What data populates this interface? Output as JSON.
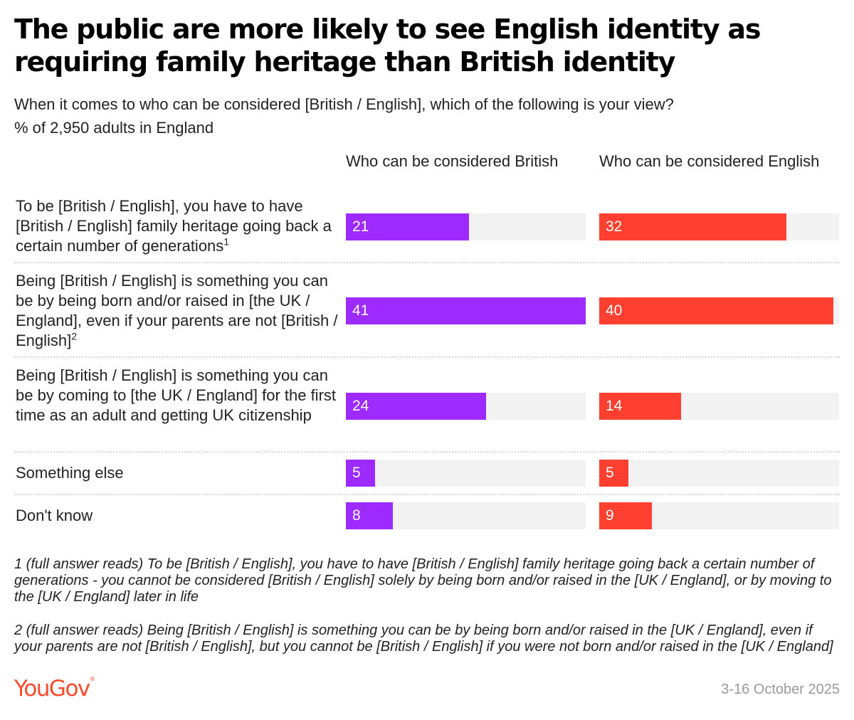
{
  "title": "The public are more likely to see English identity as requiring family heritage than British identity",
  "subtitle": "When it comes to who can be considered [British / English], which of the following is your view?",
  "base": "% of 2,950 adults in England",
  "chart_data": {
    "type": "bar",
    "orientation": "horizontal",
    "xlim": [
      0,
      41
    ],
    "series": [
      {
        "name": "Who can be considered British",
        "values": [
          21,
          41,
          24,
          5,
          8
        ],
        "color": "#9d2bff"
      },
      {
        "name": "Who can be considered English",
        "values": [
          32,
          40,
          14,
          5,
          9
        ],
        "color": "#ff4030"
      }
    ],
    "categories": [
      {
        "text": "To be [British / English], you have to have [British / English] family heritage going back a certain number of generations",
        "note": "1"
      },
      {
        "text": "Being [British / English] is something you can be by being born and/or raised in [the UK / England], even if your parents are not [British / English]",
        "note": "2"
      },
      {
        "text": "Being [British / English] is something you can be by coming to [the UK / England] for the first time as an adult and getting UK citizenship",
        "note": ""
      },
      {
        "text": "Something else",
        "note": ""
      },
      {
        "text": "Don't know",
        "note": ""
      }
    ]
  },
  "footnotes": [
    "1 (full answer reads) To be [British / English], you have to have [British / English] family heritage going back a certain number of generations - you cannot be considered [British / English] solely by being born and/or raised in the [UK / England], or by moving to the [UK / England] later in life",
    "2 (full answer reads) Being [British / English] is something you can be by being born and/or raised in the [UK / England], even if your parents are not [British / English], but you cannot be [British / English] if you were not born and/or raised in the [UK / England]"
  ],
  "brand": {
    "name": "YouGov",
    "mark": "®",
    "color": "#ff4a2a"
  },
  "date": "3-16 October 2025"
}
